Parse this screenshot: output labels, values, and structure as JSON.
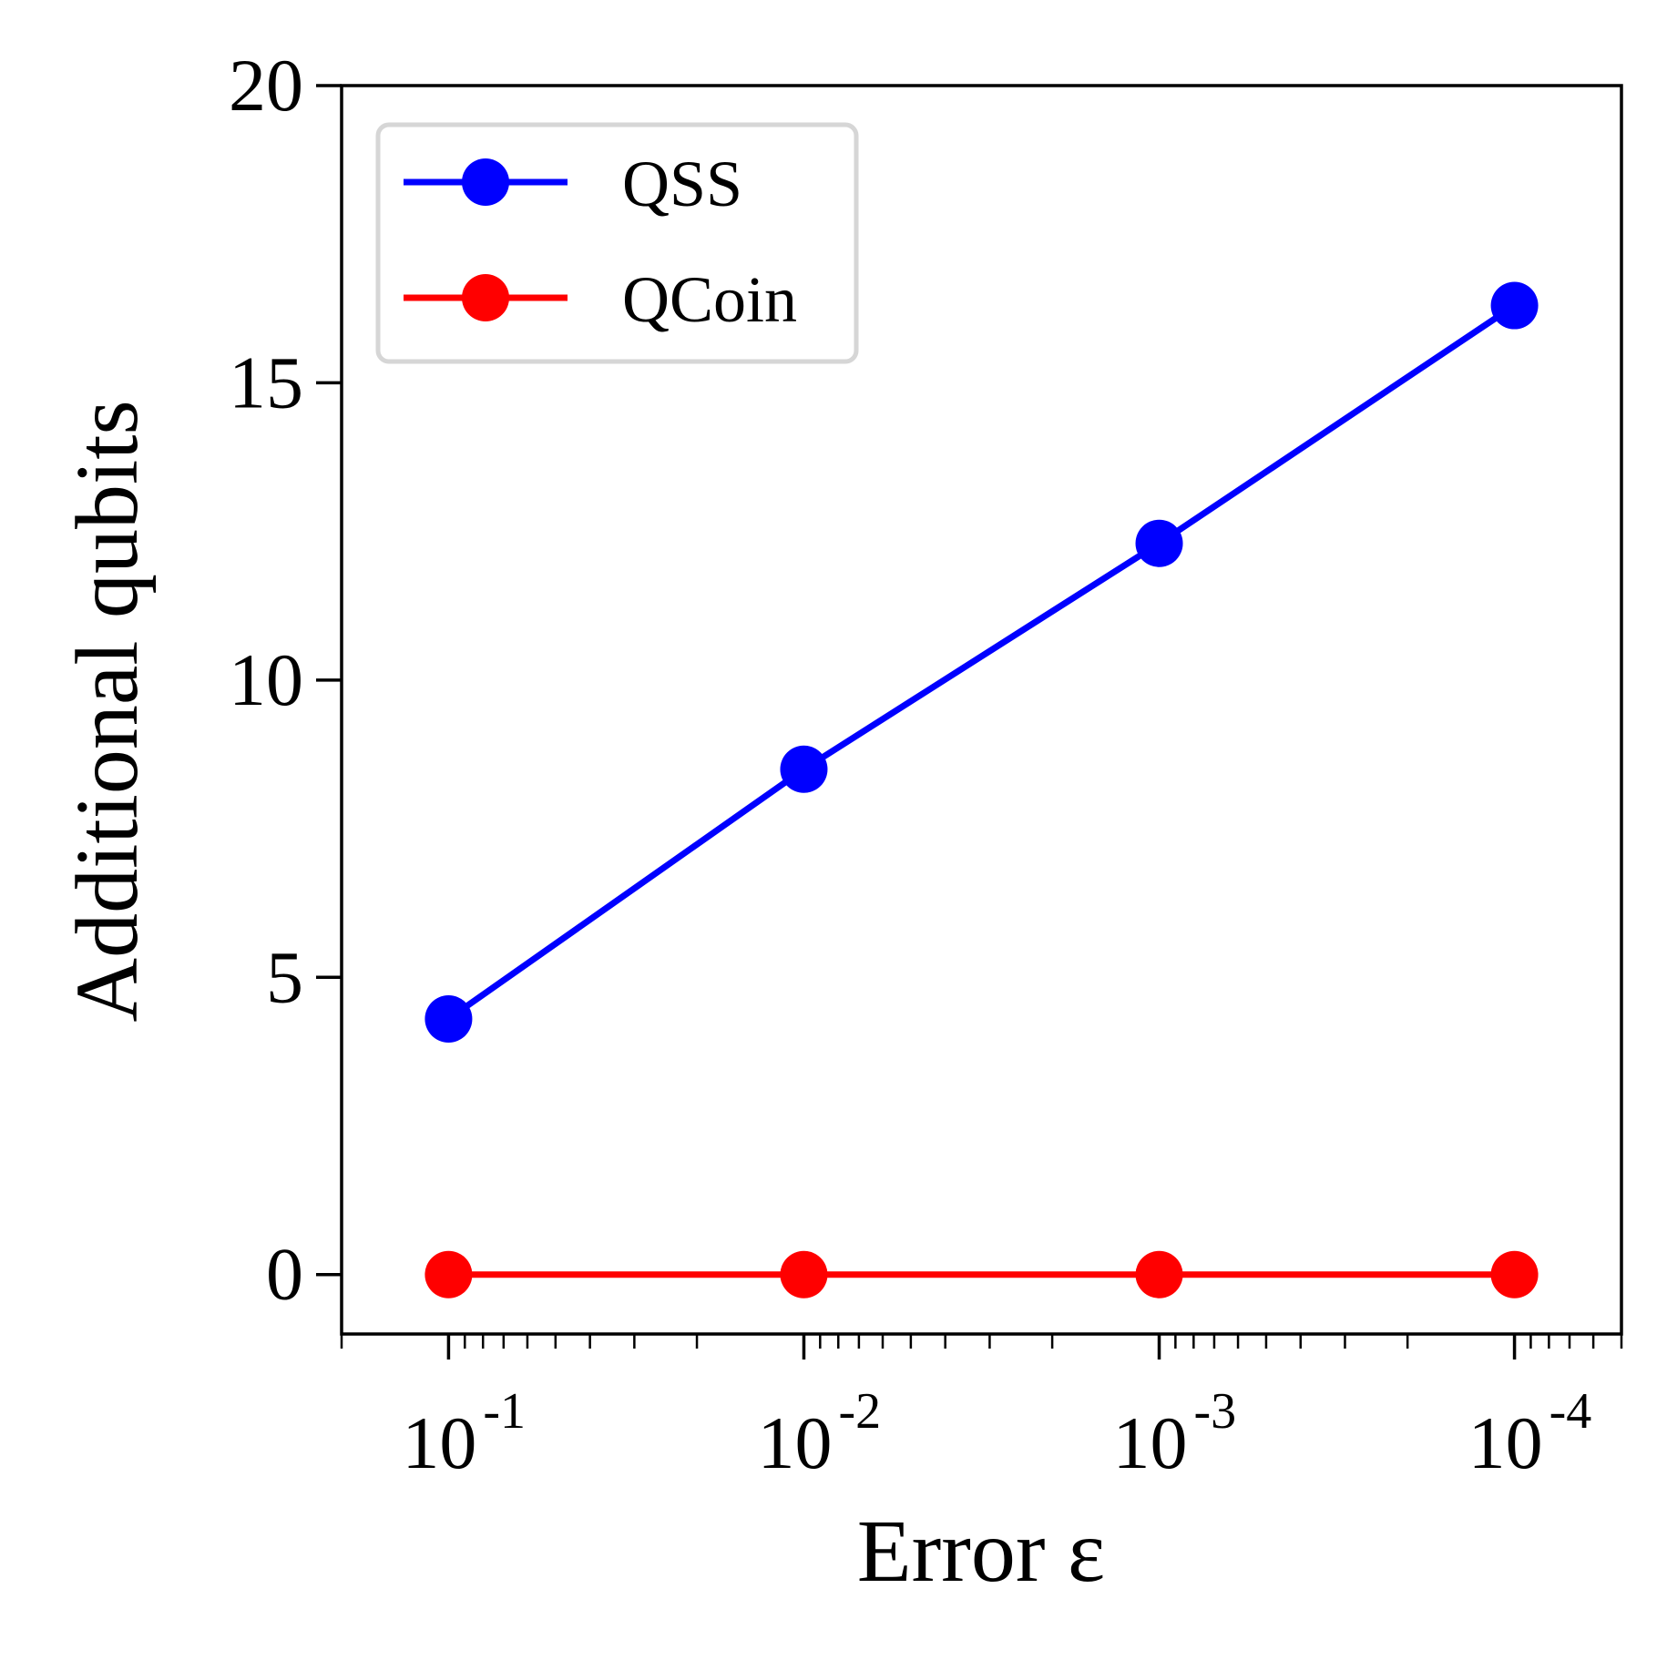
{
  "chart_data": {
    "type": "line",
    "xlabel": "Error ε",
    "ylabel": "Additional qubits",
    "x_scale": "log-reversed",
    "x": [
      0.1,
      0.01,
      0.001,
      0.0001
    ],
    "xticks": [
      {
        "base": "10",
        "exp": "-1",
        "value": 0.1
      },
      {
        "base": "10",
        "exp": "-2",
        "value": 0.01
      },
      {
        "base": "10",
        "exp": "-3",
        "value": 0.001
      },
      {
        "base": "10",
        "exp": "-4",
        "value": 0.0001
      }
    ],
    "xlim": [
      0.2,
      5e-05
    ],
    "ylim": [
      -1,
      20
    ],
    "yticks": [
      0,
      5,
      10,
      15,
      20
    ],
    "grid": false,
    "legend_position": "top-left",
    "series": [
      {
        "name": "QSS",
        "color": "#0000ff",
        "values": [
          4.3,
          8.5,
          12.3,
          16.3
        ]
      },
      {
        "name": "QCoin",
        "color": "#ff0000",
        "values": [
          0,
          0,
          0,
          0
        ]
      }
    ]
  }
}
